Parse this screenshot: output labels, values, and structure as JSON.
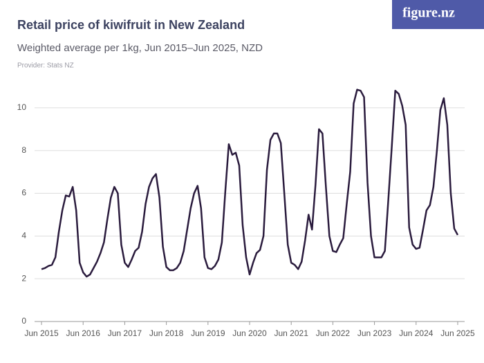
{
  "chart_data": {
    "type": "line",
    "title": "Retail price of kiwifruit in New Zealand",
    "subtitle": "Weighted average per 1kg, Jun 2015–Jun 2025, NZD",
    "source": "Provider: Stats NZ",
    "logo": "figure.nz",
    "x": [
      "2015-06",
      "2015-07",
      "2015-08",
      "2015-09",
      "2015-10",
      "2015-11",
      "2015-12",
      "2016-01",
      "2016-02",
      "2016-03",
      "2016-04",
      "2016-05",
      "2016-06",
      "2016-07",
      "2016-08",
      "2016-09",
      "2016-10",
      "2016-11",
      "2016-12",
      "2017-01",
      "2017-02",
      "2017-03",
      "2017-04",
      "2017-05",
      "2017-06",
      "2017-07",
      "2017-08",
      "2017-09",
      "2017-10",
      "2017-11",
      "2017-12",
      "2018-01",
      "2018-02",
      "2018-03",
      "2018-04",
      "2018-05",
      "2018-06",
      "2018-07",
      "2018-08",
      "2018-09",
      "2018-10",
      "2018-11",
      "2018-12",
      "2019-01",
      "2019-02",
      "2019-03",
      "2019-04",
      "2019-05",
      "2019-06",
      "2019-07",
      "2019-08",
      "2019-09",
      "2019-10",
      "2019-11",
      "2019-12",
      "2020-01",
      "2020-02",
      "2020-03",
      "2020-04",
      "2020-05",
      "2020-06",
      "2020-07",
      "2020-08",
      "2020-09",
      "2020-10",
      "2020-11",
      "2020-12",
      "2021-01",
      "2021-02",
      "2021-03",
      "2021-04",
      "2021-05",
      "2021-06",
      "2021-07",
      "2021-08",
      "2021-09",
      "2021-10",
      "2021-11",
      "2021-12",
      "2022-01",
      "2022-02",
      "2022-03",
      "2022-04",
      "2022-05",
      "2022-06",
      "2022-07",
      "2022-08",
      "2022-09",
      "2022-10",
      "2022-11",
      "2022-12",
      "2023-01",
      "2023-02",
      "2023-03",
      "2023-04",
      "2023-05",
      "2023-06",
      "2023-07",
      "2023-08",
      "2023-09",
      "2023-10",
      "2023-11",
      "2023-12",
      "2024-01",
      "2024-02",
      "2024-03",
      "2024-04",
      "2024-05",
      "2024-06",
      "2024-07",
      "2024-08",
      "2024-09",
      "2024-10",
      "2024-11",
      "2024-12",
      "2025-01",
      "2025-02",
      "2025-03",
      "2025-04",
      "2025-05",
      "2025-06"
    ],
    "series": [
      {
        "color": "#2a1b3d",
        "values": [
          2.45,
          2.5,
          2.6,
          2.65,
          3.0,
          4.2,
          5.2,
          5.9,
          5.85,
          6.3,
          5.2,
          2.75,
          2.3,
          2.1,
          2.2,
          2.5,
          2.8,
          3.2,
          3.7,
          4.8,
          5.8,
          6.3,
          6.0,
          3.6,
          2.75,
          2.55,
          2.9,
          3.3,
          3.45,
          4.2,
          5.5,
          6.3,
          6.7,
          6.9,
          5.8,
          3.5,
          2.55,
          2.4,
          2.4,
          2.5,
          2.75,
          3.3,
          4.3,
          5.3,
          6.0,
          6.35,
          5.3,
          3.0,
          2.5,
          2.45,
          2.6,
          2.9,
          3.7,
          6.1,
          8.3,
          7.8,
          7.9,
          7.3,
          4.5,
          3.0,
          2.2,
          2.75,
          3.2,
          3.35,
          4.0,
          7.1,
          8.5,
          8.8,
          8.8,
          8.35,
          6.0,
          3.6,
          2.75,
          2.65,
          2.45,
          2.8,
          3.8,
          5.0,
          4.3,
          6.4,
          9.0,
          8.8,
          6.3,
          4.0,
          3.3,
          3.25,
          3.6,
          3.9,
          5.5,
          7.0,
          10.2,
          10.85,
          10.8,
          10.5,
          6.5,
          4.0,
          3.0,
          3.0,
          3.0,
          3.3,
          5.7,
          8.2,
          10.8,
          10.65,
          10.1,
          9.2,
          4.4,
          3.6,
          3.4,
          3.45,
          4.3,
          5.2,
          5.45,
          6.3,
          8.0,
          9.9,
          10.45,
          9.2,
          6.0,
          4.35,
          4.05
        ]
      }
    ],
    "xlim": [
      "2015-04",
      "2025-08"
    ],
    "xticks": [
      {
        "value": "2015-06",
        "label": "Jun 2015"
      },
      {
        "value": "2016-06",
        "label": "Jun 2016"
      },
      {
        "value": "2017-06",
        "label": "Jun 2017"
      },
      {
        "value": "2018-06",
        "label": "Jun 2018"
      },
      {
        "value": "2019-06",
        "label": "Jun 2019"
      },
      {
        "value": "2020-06",
        "label": "Jun 2020"
      },
      {
        "value": "2021-06",
        "label": "Jun 2021"
      },
      {
        "value": "2022-06",
        "label": "Jun 2022"
      },
      {
        "value": "2023-06",
        "label": "Jun 2023"
      },
      {
        "value": "2024-06",
        "label": "Jun 2024"
      },
      {
        "value": "2025-06",
        "label": "Jun 2025"
      }
    ],
    "ylim": [
      0,
      11
    ],
    "yticks": [
      0,
      2,
      4,
      6,
      8,
      10
    ],
    "grid": true
  }
}
